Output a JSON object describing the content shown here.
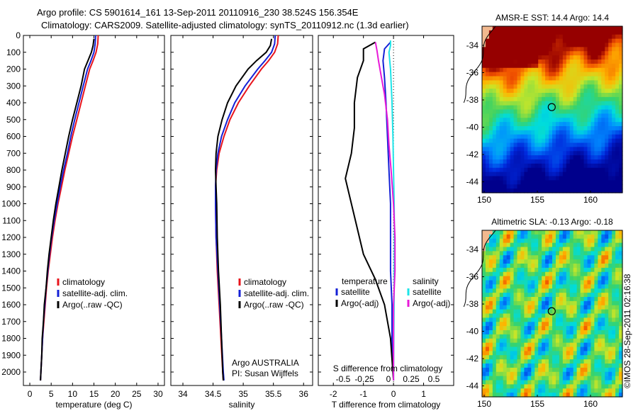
{
  "header": {
    "line1": "Argo profile: CS 5901614_161 13-Sep-2011 20110916_230 38.524S 156.354E",
    "line2": "Climatology: CARS2009. Satellite-adjusted climatology: synTS_20110912.nc (1.3d earlier)"
  },
  "stamp": "©IMOS 28-Sep-2011 02:16:38",
  "colors": {
    "clim": "#e8141c",
    "sat": "#1420d6",
    "argo": "#000000",
    "sat_s": "#1de4e8",
    "argo_s": "#e81ad8"
  },
  "chart_data": [
    {
      "type": "line",
      "name": "temperature",
      "xlabel": "temperature (deg C)",
      "xlim": [
        -1.5,
        31.5
      ],
      "ylim": [
        2080,
        0
      ],
      "xticks": [
        0,
        5,
        10,
        15,
        20,
        25,
        30
      ],
      "yticks": [
        0,
        100,
        200,
        300,
        400,
        500,
        600,
        700,
        800,
        900,
        1000,
        1100,
        1200,
        1300,
        1400,
        1500,
        1600,
        1700,
        1800,
        1900,
        2000
      ],
      "legend": [
        "climatology",
        "satellite-adj. clim.",
        "Argo(..raw -QC)"
      ],
      "series": [
        {
          "name": "climatology",
          "color": "clim",
          "points": [
            [
              16.0,
              0
            ],
            [
              15.9,
              50
            ],
            [
              15.5,
              100
            ],
            [
              14.8,
              150
            ],
            [
              14.0,
              200
            ],
            [
              13.0,
              300
            ],
            [
              12.0,
              400
            ],
            [
              11.0,
              500
            ],
            [
              10.0,
              600
            ],
            [
              9.1,
              700
            ],
            [
              8.2,
              800
            ],
            [
              7.4,
              900
            ],
            [
              6.6,
              1000
            ],
            [
              5.9,
              1100
            ],
            [
              5.3,
              1200
            ],
            [
              4.8,
              1300
            ],
            [
              4.3,
              1400
            ],
            [
              3.9,
              1500
            ],
            [
              3.6,
              1600
            ],
            [
              3.3,
              1700
            ],
            [
              3.0,
              1800
            ],
            [
              2.8,
              1900
            ],
            [
              2.6,
              2000
            ],
            [
              2.5,
              2050
            ]
          ]
        },
        {
          "name": "satellite-adj. clim.",
          "color": "sat",
          "points": [
            [
              15.4,
              0
            ],
            [
              15.3,
              50
            ],
            [
              15.0,
              100
            ],
            [
              14.3,
              150
            ],
            [
              13.5,
              200
            ],
            [
              12.5,
              300
            ],
            [
              11.5,
              400
            ],
            [
              10.5,
              500
            ],
            [
              9.6,
              600
            ],
            [
              8.8,
              700
            ],
            [
              7.9,
              800
            ],
            [
              7.1,
              900
            ],
            [
              6.4,
              1000
            ],
            [
              5.7,
              1100
            ],
            [
              5.1,
              1200
            ],
            [
              4.6,
              1300
            ],
            [
              4.2,
              1400
            ],
            [
              3.8,
              1500
            ],
            [
              3.5,
              1600
            ],
            [
              3.2,
              1700
            ],
            [
              3.0,
              1800
            ],
            [
              2.8,
              1900
            ],
            [
              2.6,
              2000
            ],
            [
              2.5,
              2050
            ]
          ]
        },
        {
          "name": "Argo(..raw -QC)",
          "color": "argo",
          "points": [
            [
              15.0,
              20
            ],
            [
              14.8,
              60
            ],
            [
              14.4,
              100
            ],
            [
              13.6,
              150
            ],
            [
              12.8,
              200
            ],
            [
              12.0,
              300
            ],
            [
              11.0,
              400
            ],
            [
              10.0,
              500
            ],
            [
              9.1,
              600
            ],
            [
              8.3,
              700
            ],
            [
              7.5,
              800
            ],
            [
              6.8,
              900
            ],
            [
              6.1,
              1000
            ],
            [
              5.5,
              1100
            ],
            [
              5.0,
              1200
            ],
            [
              4.5,
              1300
            ],
            [
              4.1,
              1400
            ],
            [
              3.8,
              1500
            ],
            [
              3.4,
              1600
            ],
            [
              3.2,
              1700
            ],
            [
              2.9,
              1800
            ],
            [
              2.8,
              1900
            ],
            [
              2.6,
              2000
            ],
            [
              2.5,
              2050
            ]
          ]
        }
      ]
    },
    {
      "type": "line",
      "name": "salinity",
      "xlabel": "salinity",
      "xlim": [
        33.8,
        36.15
      ],
      "ylim": [
        2080,
        0
      ],
      "xticks": [
        34,
        34.5,
        35,
        35.5,
        36
      ],
      "legend": [
        "climatology",
        "satellite-adj. clim.",
        "Argo(..raw -QC)"
      ],
      "notes": [
        "Argo AUSTRALIA",
        "PI: Susan Wijffels"
      ],
      "series": [
        {
          "name": "climatology",
          "color": "clim",
          "points": [
            [
              35.58,
              0
            ],
            [
              35.57,
              50
            ],
            [
              35.52,
              100
            ],
            [
              35.42,
              150
            ],
            [
              35.3,
              200
            ],
            [
              35.1,
              300
            ],
            [
              34.92,
              400
            ],
            [
              34.78,
              500
            ],
            [
              34.68,
              600
            ],
            [
              34.6,
              700
            ],
            [
              34.56,
              800
            ],
            [
              34.54,
              900
            ],
            [
              34.54,
              1000
            ],
            [
              34.55,
              1200
            ],
            [
              34.57,
              1400
            ],
            [
              34.6,
              1600
            ],
            [
              34.63,
              1800
            ],
            [
              34.66,
              2000
            ],
            [
              34.67,
              2050
            ]
          ]
        },
        {
          "name": "satellite-adj. clim.",
          "color": "sat",
          "points": [
            [
              35.53,
              0
            ],
            [
              35.52,
              50
            ],
            [
              35.47,
              100
            ],
            [
              35.36,
              150
            ],
            [
              35.24,
              200
            ],
            [
              35.03,
              300
            ],
            [
              34.86,
              400
            ],
            [
              34.74,
              500
            ],
            [
              34.64,
              600
            ],
            [
              34.58,
              700
            ],
            [
              34.55,
              800
            ],
            [
              34.54,
              900
            ],
            [
              34.54,
              1000
            ],
            [
              34.55,
              1200
            ],
            [
              34.58,
              1400
            ],
            [
              34.61,
              1600
            ],
            [
              34.64,
              1800
            ],
            [
              34.67,
              2000
            ],
            [
              34.68,
              2050
            ]
          ]
        },
        {
          "name": "Argo(..raw -QC)",
          "color": "argo",
          "points": [
            [
              35.47,
              20
            ],
            [
              35.45,
              60
            ],
            [
              35.38,
              100
            ],
            [
              35.22,
              150
            ],
            [
              35.08,
              200
            ],
            [
              34.88,
              300
            ],
            [
              34.74,
              400
            ],
            [
              34.65,
              500
            ],
            [
              34.58,
              600
            ],
            [
              34.55,
              700
            ],
            [
              34.54,
              800
            ],
            [
              34.55,
              900
            ],
            [
              34.56,
              1000
            ],
            [
              34.57,
              1200
            ],
            [
              34.59,
              1400
            ],
            [
              34.62,
              1600
            ],
            [
              34.64,
              1800
            ],
            [
              34.66,
              2000
            ],
            [
              34.67,
              2050
            ]
          ]
        }
      ]
    },
    {
      "type": "line",
      "name": "difference",
      "xlabel": "T difference from climatology",
      "xlim": [
        -2.5,
        2.0
      ],
      "ylim": [
        2080,
        0
      ],
      "xticks": [
        -2,
        -1,
        0,
        1
      ],
      "top_axis_label": "S difference from climatology",
      "top_ticks": [
        "-0.5",
        "-0.25",
        "0",
        "0.25",
        "0.5"
      ],
      "legend_temperature": [
        "temperature",
        "satellite",
        "Argo(-adj)"
      ],
      "legend_salinity": [
        "salinity",
        "satellite",
        "Argo(-adj)"
      ],
      "series": [
        {
          "name": "T satellite",
          "color": "sat",
          "points": [
            [
              -0.1,
              40
            ],
            [
              -0.3,
              80
            ],
            [
              -0.35,
              150
            ],
            [
              -0.3,
              250
            ],
            [
              -0.25,
              400
            ],
            [
              -0.2,
              600
            ],
            [
              -0.15,
              800
            ],
            [
              -0.1,
              1000
            ],
            [
              -0.1,
              1200
            ],
            [
              -0.1,
              1400
            ],
            [
              -0.05,
              1600
            ],
            [
              -0.05,
              1800
            ],
            [
              0.0,
              2050
            ]
          ]
        },
        {
          "name": "T Argo(-adj)",
          "color": "argo",
          "points": [
            [
              -0.6,
              40
            ],
            [
              -1.0,
              80
            ],
            [
              -1.0,
              150
            ],
            [
              -1.2,
              250
            ],
            [
              -1.3,
              400
            ],
            [
              -1.3,
              550
            ],
            [
              -1.4,
              700
            ],
            [
              -1.6,
              850
            ],
            [
              -1.4,
              1000
            ],
            [
              -1.2,
              1150
            ],
            [
              -1.0,
              1300
            ],
            [
              -0.6,
              1450
            ],
            [
              -0.3,
              1600
            ],
            [
              -0.1,
              1800
            ],
            [
              0.0,
              2050
            ]
          ]
        },
        {
          "name": "S satellite",
          "color": "sat_s",
          "points": [
            [
              -0.1,
              30
            ],
            [
              -0.1,
              60
            ],
            [
              -0.15,
              100
            ],
            [
              -0.1,
              200
            ],
            [
              -0.05,
              400
            ],
            [
              -0.02,
              600
            ],
            [
              0.0,
              800
            ],
            [
              0.02,
              1000
            ],
            [
              0.03,
              1200
            ],
            [
              0.02,
              1500
            ],
            [
              0.01,
              1800
            ],
            [
              0.0,
              2050
            ]
          ]
        },
        {
          "name": "S Argo(-adj)",
          "color": "argo_s",
          "points": [
            [
              -0.6,
              40
            ],
            [
              -0.55,
              90
            ],
            [
              -0.5,
              150
            ],
            [
              -0.4,
              250
            ],
            [
              -0.3,
              350
            ],
            [
              -0.2,
              500
            ],
            [
              -0.15,
              650
            ],
            [
              -0.08,
              800
            ],
            [
              0.0,
              1000
            ],
            [
              0.05,
              1200
            ],
            [
              0.05,
              1400
            ],
            [
              0.0,
              1600
            ],
            [
              0.0,
              1800
            ],
            [
              0.0,
              2050
            ]
          ]
        }
      ]
    },
    {
      "type": "heatmap",
      "name": "sst_map",
      "title": "AMSR-E SST: 14.4 Argo: 14.4",
      "xlim": [
        149.8,
        163.0
      ],
      "ylim": [
        -44.8,
        -32.6
      ],
      "xticks": [
        150,
        155,
        160
      ],
      "yticks": [
        -34,
        -36,
        -38,
        -40,
        -42,
        -44
      ],
      "argo_position": [
        156.354,
        -38.524
      ]
    },
    {
      "type": "heatmap",
      "name": "sla_map",
      "title": "Altimetric SLA: -0.13 Argo: -0.18",
      "xlim": [
        149.8,
        163.0
      ],
      "ylim": [
        -44.8,
        -32.6
      ],
      "xticks": [
        150,
        155,
        160
      ],
      "yticks": [
        -34,
        -36,
        -38,
        -40,
        -42,
        -44
      ],
      "argo_position": [
        156.354,
        -38.524
      ]
    }
  ]
}
